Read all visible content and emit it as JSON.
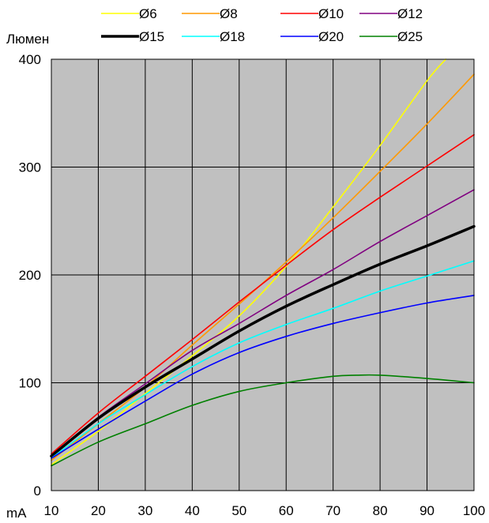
{
  "chart_data": {
    "type": "line",
    "xlabel": "mA",
    "ylabel": "Люмен",
    "xlim": [
      10,
      100
    ],
    "ylim": [
      0,
      400
    ],
    "xticks": [
      10,
      20,
      30,
      40,
      50,
      60,
      70,
      80,
      90,
      100
    ],
    "yticks": [
      0,
      100,
      200,
      300,
      400
    ],
    "grid": true,
    "legend_position": "top",
    "plot_background": "#c0c0c0",
    "series": [
      {
        "name": "Ø6",
        "color": "#ffff00",
        "x": [
          10,
          20,
          30,
          40,
          50,
          60,
          70,
          80,
          90,
          94
        ],
        "y": [
          24,
          55,
          90,
          125,
          162,
          208,
          263,
          320,
          380,
          400
        ]
      },
      {
        "name": "Ø8",
        "color": "#ff9900",
        "x": [
          10,
          20,
          30,
          40,
          50,
          60,
          70,
          80,
          90,
          100
        ],
        "y": [
          28,
          62,
          96,
          135,
          173,
          212,
          253,
          296,
          340,
          386
        ]
      },
      {
        "name": "Ø10",
        "color": "#ff0000",
        "x": [
          10,
          20,
          30,
          40,
          50,
          60,
          70,
          80,
          90,
          100
        ],
        "y": [
          34,
          72,
          106,
          140,
          175,
          209,
          242,
          272,
          301,
          330
        ]
      },
      {
        "name": "Ø12",
        "color": "#800080",
        "x": [
          10,
          20,
          30,
          40,
          50,
          60,
          70,
          80,
          90,
          100
        ],
        "y": [
          32,
          68,
          99,
          130,
          155,
          181,
          205,
          231,
          255,
          279
        ]
      },
      {
        "name": "Ø15",
        "color": "#000000",
        "bold": true,
        "x": [
          10,
          20,
          30,
          40,
          50,
          60,
          70,
          80,
          90,
          100
        ],
        "y": [
          32,
          67,
          96,
          122,
          148,
          171,
          191,
          210,
          227,
          245
        ]
      },
      {
        "name": "Ø18",
        "color": "#00ffff",
        "x": [
          10,
          20,
          30,
          40,
          50,
          60,
          70,
          80,
          90,
          100
        ],
        "y": [
          30,
          62,
          89,
          115,
          137,
          154,
          169,
          185,
          199,
          213
        ]
      },
      {
        "name": "Ø20",
        "color": "#0000ff",
        "x": [
          10,
          20,
          30,
          40,
          50,
          60,
          70,
          80,
          90,
          100
        ],
        "y": [
          30,
          57,
          83,
          108,
          128,
          143,
          155,
          165,
          174,
          181
        ]
      },
      {
        "name": "Ø25",
        "color": "#008000",
        "x": [
          10,
          20,
          30,
          40,
          50,
          60,
          70,
          75,
          80,
          90,
          100
        ],
        "y": [
          23,
          45,
          62,
          79,
          92,
          100,
          106,
          107,
          107,
          104,
          100
        ]
      }
    ]
  }
}
